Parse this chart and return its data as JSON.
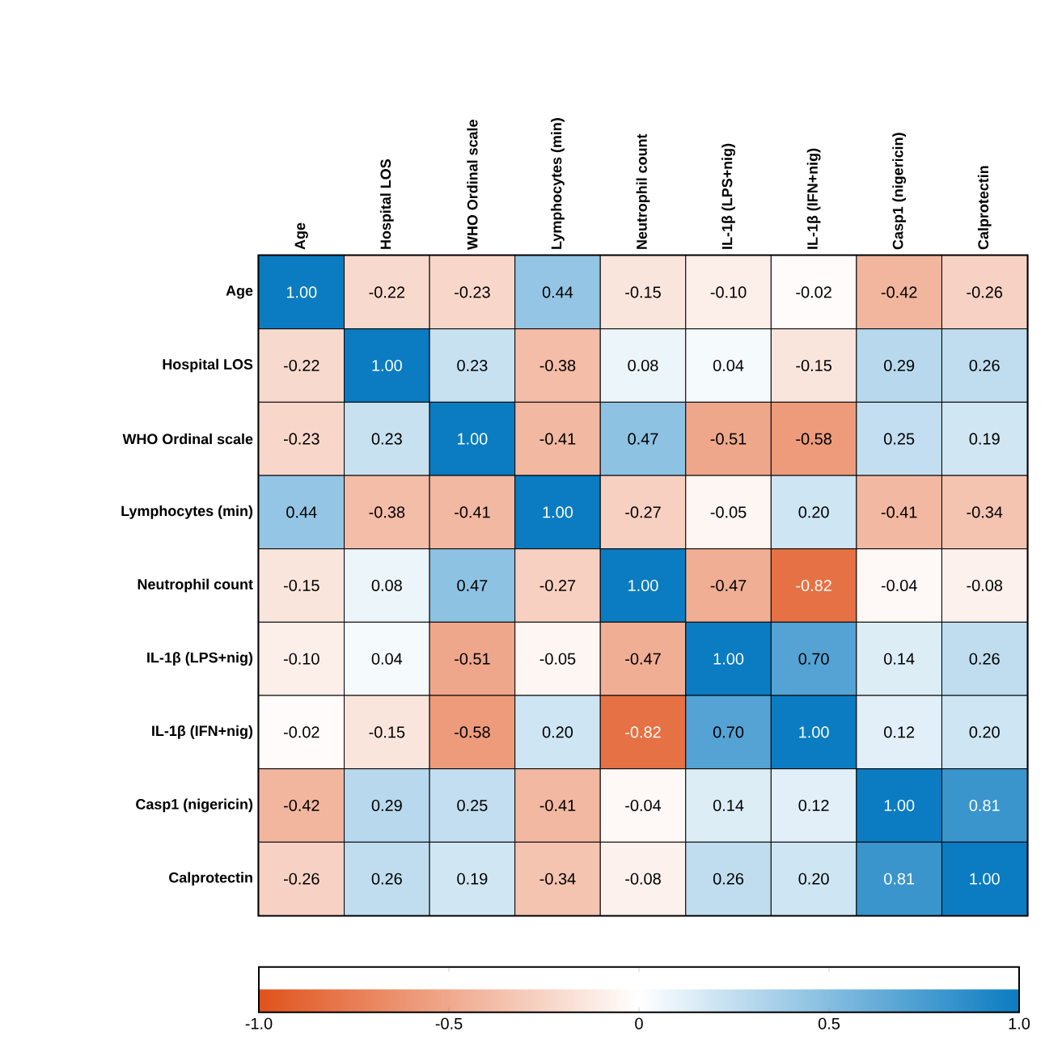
{
  "chart_data": {
    "type": "heatmap",
    "categories": [
      "Age",
      "Hospital LOS",
      "WHO Ordinal scale",
      "Lymphocytes (min)",
      "Neutrophil count",
      "IL-1β (LPS+nig)",
      "IL-1β (IFN+nig)",
      "Casp1 (nigericin)",
      "Calprotectin"
    ],
    "y_categories": [
      "Age",
      "Hospital LOS",
      "WHO Ordinal scale",
      "Lymphocytes (min)",
      "Neutrophil count",
      "IL-1β (LPS+nig)",
      "IL-1β (IFN+nig)",
      "Casp1 (nigericin)",
      "Calprotectin"
    ],
    "cells": [
      [
        1.0,
        -0.22,
        -0.23,
        0.44,
        -0.15,
        -0.1,
        -0.02,
        -0.42,
        -0.26
      ],
      [
        -0.22,
        1.0,
        0.23,
        -0.38,
        0.08,
        0.04,
        -0.15,
        0.29,
        0.26
      ],
      [
        -0.23,
        0.23,
        1.0,
        -0.41,
        0.47,
        -0.51,
        -0.58,
        0.25,
        0.19
      ],
      [
        0.44,
        -0.38,
        -0.41,
        1.0,
        -0.27,
        -0.05,
        0.2,
        -0.41,
        -0.34
      ],
      [
        -0.15,
        0.08,
        0.47,
        -0.27,
        1.0,
        -0.47,
        -0.82,
        -0.04,
        -0.08
      ],
      [
        -0.1,
        0.04,
        -0.51,
        -0.05,
        -0.47,
        1.0,
        0.7,
        0.14,
        0.26
      ],
      [
        -0.02,
        -0.15,
        -0.58,
        0.2,
        -0.82,
        0.7,
        1.0,
        0.12,
        0.2
      ],
      [
        -0.42,
        0.29,
        0.25,
        -0.41,
        -0.04,
        0.14,
        0.12,
        1.0,
        0.81
      ],
      [
        -0.26,
        0.26,
        0.19,
        -0.34,
        -0.08,
        0.26,
        0.2,
        0.81,
        1.0
      ]
    ],
    "cell_labels": [
      [
        "1.00",
        "-0.22",
        "-0.23",
        "0.44",
        "-0.15",
        "-0.10",
        "-0.02",
        "-0.42",
        "-0.26"
      ],
      [
        "-0.22",
        "1.00",
        "0.23",
        "-0.38",
        "0.08",
        "0.04",
        "-0.15",
        "0.29",
        "0.26"
      ],
      [
        "-0.23",
        "0.23",
        "1.00",
        "-0.41",
        "0.47",
        "-0.51",
        "-0.58",
        "0.25",
        "0.19"
      ],
      [
        "0.44",
        "-0.38",
        "-0.41",
        "1.00",
        "-0.27",
        "-0.05",
        "0.20",
        "-0.41",
        "-0.34"
      ],
      [
        "-0.15",
        "0.08",
        "0.47",
        "-0.27",
        "1.00",
        "-0.47",
        "-0.82",
        "-0.04",
        "-0.08"
      ],
      [
        "-0.10",
        "0.04",
        "-0.51",
        "-0.05",
        "-0.47",
        "1.00",
        "0.70",
        "0.14",
        "0.26"
      ],
      [
        "-0.02",
        "-0.15",
        "-0.58",
        "0.20",
        "-0.82",
        "0.70",
        "1.00",
        "0.12",
        "0.20"
      ],
      [
        "-0.42",
        "0.29",
        "0.25",
        "-0.41",
        "-0.04",
        "0.14",
        "0.12",
        "1.00",
        "0.81"
      ],
      [
        "-0.26",
        "0.26",
        "0.19",
        "-0.34",
        "-0.08",
        "0.26",
        "0.20",
        "0.81",
        "1.00"
      ]
    ],
    "clim": [
      -1,
      1
    ],
    "cticks": [
      {
        "value": -1,
        "label": "-1.0"
      },
      {
        "value": -0.5,
        "label": "-0.5"
      },
      {
        "value": 0,
        "label": "0"
      },
      {
        "value": 0.5,
        "label": "0.5"
      },
      {
        "value": 1,
        "label": "1.0"
      }
    ]
  }
}
